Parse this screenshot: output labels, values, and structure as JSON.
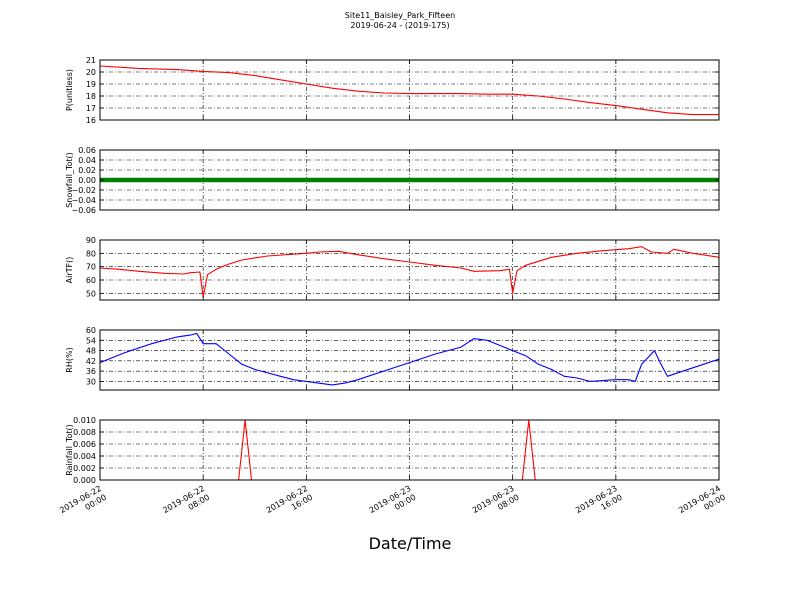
{
  "chart_data": {
    "type": "line",
    "title": "Site11_Baisley_Park_Fifteen",
    "subtitle": "2019-06-24 - (2019-175)",
    "xlabel": "Date/Time",
    "x_ticks": [
      {
        "l1": "2019-06-22",
        "l2": "00:00"
      },
      {
        "l1": "2019-06-22",
        "l2": "08:00"
      },
      {
        "l1": "2019-06-22",
        "l2": "16:00"
      },
      {
        "l1": "2019-06-23",
        "l2": "00:00"
      },
      {
        "l1": "2019-06-23",
        "l2": "08:00"
      },
      {
        "l1": "2019-06-23",
        "l2": "16:00"
      },
      {
        "l1": "2019-06-24",
        "l2": "00:00"
      }
    ],
    "xlim": [
      "2019-06-22 00:00",
      "2019-06-24 00:00"
    ],
    "grid": true,
    "panels": [
      {
        "ylabel": "P(unitless)",
        "ylim": [
          16,
          21
        ],
        "yticks": [
          "16",
          "17",
          "18",
          "19",
          "20",
          "21"
        ],
        "tick_values": [
          16,
          17,
          18,
          19,
          20,
          21
        ],
        "color": "#ff0000",
        "style": "line",
        "series": [
          {
            "x": "2019-06-22 00:00",
            "y": 20.5
          },
          {
            "x": "2019-06-22 03:00",
            "y": 20.3
          },
          {
            "x": "2019-06-22 06:00",
            "y": 20.2
          },
          {
            "x": "2019-06-22 08:00",
            "y": 20.05
          },
          {
            "x": "2019-06-22 10:00",
            "y": 19.95
          },
          {
            "x": "2019-06-22 12:00",
            "y": 19.7
          },
          {
            "x": "2019-06-22 14:00",
            "y": 19.35
          },
          {
            "x": "2019-06-22 16:00",
            "y": 19.0
          },
          {
            "x": "2019-06-22 18:00",
            "y": 18.65
          },
          {
            "x": "2019-06-22 20:00",
            "y": 18.4
          },
          {
            "x": "2019-06-22 22:00",
            "y": 18.25
          },
          {
            "x": "2019-06-23 00:00",
            "y": 18.2
          },
          {
            "x": "2019-06-23 04:00",
            "y": 18.2
          },
          {
            "x": "2019-06-23 06:00",
            "y": 18.15
          },
          {
            "x": "2019-06-23 08:00",
            "y": 18.15
          },
          {
            "x": "2019-06-23 10:00",
            "y": 18.0
          },
          {
            "x": "2019-06-23 12:00",
            "y": 17.75
          },
          {
            "x": "2019-06-23 14:00",
            "y": 17.45
          },
          {
            "x": "2019-06-23 16:00",
            "y": 17.2
          },
          {
            "x": "2019-06-23 18:00",
            "y": 16.9
          },
          {
            "x": "2019-06-23 20:00",
            "y": 16.6
          },
          {
            "x": "2019-06-23 22:00",
            "y": 16.45
          },
          {
            "x": "2019-06-24 00:00",
            "y": 16.45
          }
        ]
      },
      {
        "ylabel": "Snowfall_Tot()",
        "ylim": [
          -0.06,
          0.06
        ],
        "yticks": [
          "−0.06",
          "−0.04",
          "−0.02",
          "0.00",
          "0.02",
          "0.04",
          "0.06"
        ],
        "tick_values": [
          -0.06,
          -0.04,
          -0.02,
          0,
          0.02,
          0.04,
          0.06
        ],
        "color": "#008000",
        "style": "markers",
        "series": [
          {
            "x": "2019-06-22 00:00",
            "y": 0
          },
          {
            "x": "2019-06-24 00:00",
            "y": 0
          }
        ]
      },
      {
        "ylabel": "AirTF()",
        "ylim": [
          45,
          90
        ],
        "yticks": [
          "50",
          "60",
          "70",
          "80",
          "90"
        ],
        "tick_values": [
          50,
          60,
          70,
          80,
          90
        ],
        "color": "#ff0000",
        "style": "line",
        "series": [
          {
            "x": "2019-06-22 00:00",
            "y": 69
          },
          {
            "x": "2019-06-22 01:30",
            "y": 68
          },
          {
            "x": "2019-06-22 03:00",
            "y": 66.5
          },
          {
            "x": "2019-06-22 05:00",
            "y": 65
          },
          {
            "x": "2019-06-22 06:30",
            "y": 64.5
          },
          {
            "x": "2019-06-22 07:00",
            "y": 65.5
          },
          {
            "x": "2019-06-22 07:45",
            "y": 66
          },
          {
            "x": "2019-06-22 08:00",
            "y": 47
          },
          {
            "x": "2019-06-22 08:20",
            "y": 64
          },
          {
            "x": "2019-06-22 09:00",
            "y": 68
          },
          {
            "x": "2019-06-22 10:00",
            "y": 72
          },
          {
            "x": "2019-06-22 11:00",
            "y": 75
          },
          {
            "x": "2019-06-22 13:00",
            "y": 78
          },
          {
            "x": "2019-06-22 16:00",
            "y": 80
          },
          {
            "x": "2019-06-22 17:00",
            "y": 81
          },
          {
            "x": "2019-06-22 18:30",
            "y": 81.5
          },
          {
            "x": "2019-06-22 20:00",
            "y": 79
          },
          {
            "x": "2019-06-22 22:00",
            "y": 76
          },
          {
            "x": "2019-06-23 00:00",
            "y": 73.5
          },
          {
            "x": "2019-06-23 02:00",
            "y": 71
          },
          {
            "x": "2019-06-23 04:00",
            "y": 69
          },
          {
            "x": "2019-06-23 05:00",
            "y": 66.5
          },
          {
            "x": "2019-06-23 07:00",
            "y": 67
          },
          {
            "x": "2019-06-23 07:45",
            "y": 68
          },
          {
            "x": "2019-06-23 08:00",
            "y": 50
          },
          {
            "x": "2019-06-23 08:20",
            "y": 67
          },
          {
            "x": "2019-06-23 09:00",
            "y": 71
          },
          {
            "x": "2019-06-23 10:00",
            "y": 74
          },
          {
            "x": "2019-06-23 11:00",
            "y": 77
          },
          {
            "x": "2019-06-23 13:00",
            "y": 80
          },
          {
            "x": "2019-06-23 15:00",
            "y": 82
          },
          {
            "x": "2019-06-23 17:00",
            "y": 83.5
          },
          {
            "x": "2019-06-23 18:00",
            "y": 85
          },
          {
            "x": "2019-06-23 18:45",
            "y": 81
          },
          {
            "x": "2019-06-23 20:00",
            "y": 80
          },
          {
            "x": "2019-06-23 20:30",
            "y": 83
          },
          {
            "x": "2019-06-23 22:00",
            "y": 80
          },
          {
            "x": "2019-06-24 00:00",
            "y": 77
          }
        ]
      },
      {
        "ylabel": "RH(%)",
        "ylim": [
          25,
          60
        ],
        "yticks": [
          "30",
          "36",
          "42",
          "48",
          "54",
          "60"
        ],
        "tick_values": [
          30,
          36,
          42,
          48,
          54,
          60
        ],
        "color": "#0000ff",
        "style": "line",
        "series": [
          {
            "x": "2019-06-22 00:00",
            "y": 41
          },
          {
            "x": "2019-06-22 02:00",
            "y": 47
          },
          {
            "x": "2019-06-22 04:00",
            "y": 52
          },
          {
            "x": "2019-06-22 06:00",
            "y": 56
          },
          {
            "x": "2019-06-22 07:00",
            "y": 57
          },
          {
            "x": "2019-06-22 07:30",
            "y": 58
          },
          {
            "x": "2019-06-22 08:00",
            "y": 52
          },
          {
            "x": "2019-06-22 09:00",
            "y": 52
          },
          {
            "x": "2019-06-22 10:00",
            "y": 46
          },
          {
            "x": "2019-06-22 11:00",
            "y": 40
          },
          {
            "x": "2019-06-22 12:00",
            "y": 37
          },
          {
            "x": "2019-06-22 13:00",
            "y": 35
          },
          {
            "x": "2019-06-22 14:00",
            "y": 33
          },
          {
            "x": "2019-06-22 15:00",
            "y": 31
          },
          {
            "x": "2019-06-22 16:00",
            "y": 30
          },
          {
            "x": "2019-06-22 18:00",
            "y": 28
          },
          {
            "x": "2019-06-22 19:00",
            "y": 29
          },
          {
            "x": "2019-06-22 20:00",
            "y": 31
          },
          {
            "x": "2019-06-22 22:00",
            "y": 36
          },
          {
            "x": "2019-06-23 00:00",
            "y": 41
          },
          {
            "x": "2019-06-23 02:00",
            "y": 46
          },
          {
            "x": "2019-06-23 04:00",
            "y": 50
          },
          {
            "x": "2019-06-23 05:00",
            "y": 55
          },
          {
            "x": "2019-06-23 06:00",
            "y": 54
          },
          {
            "x": "2019-06-23 07:00",
            "y": 51
          },
          {
            "x": "2019-06-23 08:00",
            "y": 48
          },
          {
            "x": "2019-06-23 09:00",
            "y": 45
          },
          {
            "x": "2019-06-23 10:00",
            "y": 40
          },
          {
            "x": "2019-06-23 11:00",
            "y": 37
          },
          {
            "x": "2019-06-23 12:00",
            "y": 33
          },
          {
            "x": "2019-06-23 13:00",
            "y": 32
          },
          {
            "x": "2019-06-23 14:00",
            "y": 30
          },
          {
            "x": "2019-06-23 16:00",
            "y": 31
          },
          {
            "x": "2019-06-23 17:00",
            "y": 31
          },
          {
            "x": "2019-06-23 17:30",
            "y": 30
          },
          {
            "x": "2019-06-23 18:00",
            "y": 40
          },
          {
            "x": "2019-06-23 19:00",
            "y": 48
          },
          {
            "x": "2019-06-23 19:30",
            "y": 40
          },
          {
            "x": "2019-06-23 20:00",
            "y": 33
          },
          {
            "x": "2019-06-23 22:00",
            "y": 38
          },
          {
            "x": "2019-06-24 00:00",
            "y": 43
          }
        ]
      },
      {
        "ylabel": "Rainfall_Tot()",
        "ylim": [
          0,
          0.01
        ],
        "yticks": [
          "0.000",
          "0.002",
          "0.004",
          "0.006",
          "0.008",
          "0.010"
        ],
        "tick_values": [
          0,
          0.002,
          0.004,
          0.006,
          0.008,
          0.01
        ],
        "color": "#ff0000",
        "style": "line",
        "series": [
          {
            "x": "2019-06-22 00:00",
            "y": 0
          },
          {
            "x": "2019-06-22 10:45",
            "y": 0
          },
          {
            "x": "2019-06-22 11:15",
            "y": 0.01
          },
          {
            "x": "2019-06-22 11:45",
            "y": 0
          },
          {
            "x": "2019-06-23 08:45",
            "y": 0
          },
          {
            "x": "2019-06-23 09:15",
            "y": 0.01
          },
          {
            "x": "2019-06-23 09:45",
            "y": 0
          },
          {
            "x": "2019-06-24 00:00",
            "y": 0
          }
        ]
      }
    ]
  }
}
